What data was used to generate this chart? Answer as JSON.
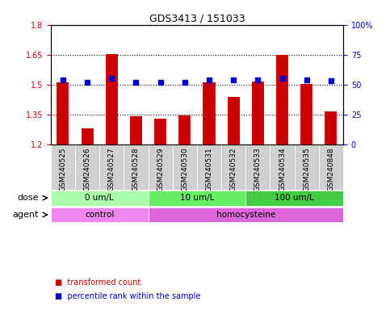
{
  "title": "GDS3413 / 151033",
  "samples": [
    "GSM240525",
    "GSM240526",
    "GSM240527",
    "GSM240528",
    "GSM240529",
    "GSM240530",
    "GSM240531",
    "GSM240532",
    "GSM240533",
    "GSM240534",
    "GSM240535",
    "GSM240848"
  ],
  "bar_values": [
    1.51,
    1.28,
    1.655,
    1.34,
    1.33,
    1.345,
    1.51,
    1.44,
    1.515,
    1.65,
    1.505,
    1.365
  ],
  "dot_values": [
    54,
    52,
    55,
    52,
    52,
    52,
    54,
    54,
    54,
    55,
    54,
    53
  ],
  "bar_color": "#cc0000",
  "dot_color": "#0000cc",
  "ylim_left": [
    1.2,
    1.8
  ],
  "ylim_right": [
    0,
    100
  ],
  "yticks_left": [
    1.2,
    1.35,
    1.5,
    1.65,
    1.8
  ],
  "yticks_right": [
    0,
    25,
    50,
    75,
    100
  ],
  "ytick_labels_left": [
    "1.2",
    "1.35",
    "1.5",
    "1.65",
    "1.8"
  ],
  "ytick_labels_right": [
    "0",
    "25",
    "50",
    "75",
    "100%"
  ],
  "ybaseline": 1.2,
  "dose_groups": [
    {
      "label": "0 um/L",
      "start": 0,
      "end": 4,
      "color": "#aaffaa"
    },
    {
      "label": "10 um/L",
      "start": 4,
      "end": 8,
      "color": "#66ee66"
    },
    {
      "label": "100 um/L",
      "start": 8,
      "end": 12,
      "color": "#44cc44"
    }
  ],
  "agent_groups": [
    {
      "label": "control",
      "start": 0,
      "end": 4,
      "color": "#ee88ee"
    },
    {
      "label": "homocysteine",
      "start": 4,
      "end": 12,
      "color": "#dd66dd"
    }
  ],
  "legend_items": [
    {
      "label": "transformed count",
      "color": "#cc0000",
      "marker": "s"
    },
    {
      "label": "percentile rank within the sample",
      "color": "#0000cc",
      "marker": "s"
    }
  ],
  "dose_label": "dose",
  "agent_label": "agent",
  "grid_linestyle": "dotted",
  "bar_width": 0.5,
  "sample_bg_color": "#d0d0d0"
}
